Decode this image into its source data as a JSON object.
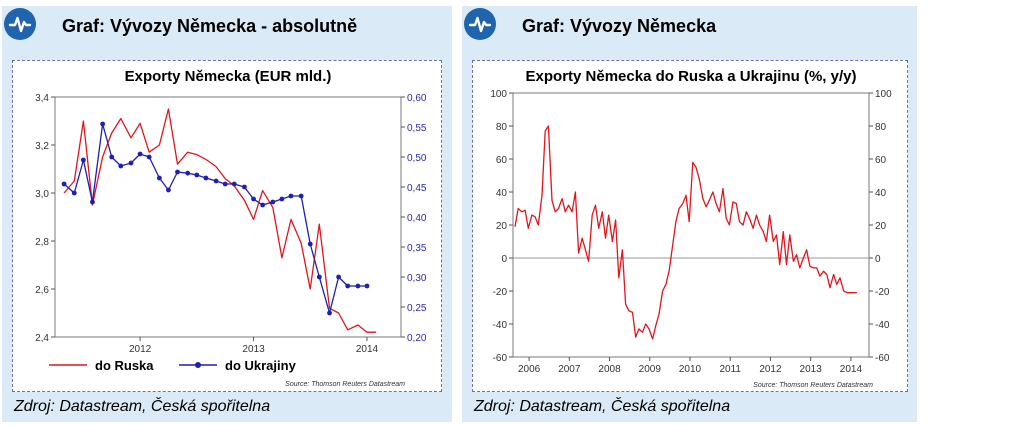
{
  "panels": {
    "left": {
      "title": "Graf:  Vývozy Německa - absolutně",
      "source": "Zdroj: Datastream, Česká spořitelna"
    },
    "right": {
      "title": "Graf:  Vývozy Německa",
      "source": "Zdroj: Datastream, Česká spořitelna"
    }
  },
  "colors": {
    "panel_bg": "#daeaf6",
    "icon": "#1f64ad",
    "russia": "#e2151c",
    "ukraine": "#1f1fb0",
    "axis_right": "#2b2bb0"
  },
  "icons": {
    "header": "pulse-chart-icon"
  },
  "chart_data": [
    {
      "type": "line",
      "title": "Exporty Německa (EUR mld.)",
      "x_ticks": [
        "2012",
        "2013",
        "2014"
      ],
      "x_range": [
        2011.25,
        2014.3
      ],
      "x_tick_values": [
        2012,
        2013,
        2014
      ],
      "y_left": {
        "range": [
          2.4,
          3.4
        ],
        "ticks": [
          "2,4",
          "2,6",
          "2,8",
          "3,0",
          "3,2",
          "3,4"
        ],
        "tick_values": [
          2.4,
          2.6,
          2.8,
          3.0,
          3.2,
          3.4
        ]
      },
      "y_right": {
        "range": [
          0.2,
          0.6
        ],
        "ticks": [
          "0,20",
          "0,25",
          "0,30",
          "0,35",
          "0,40",
          "0,45",
          "0,50",
          "0,55",
          "0,60"
        ],
        "tick_values": [
          0.2,
          0.25,
          0.3,
          0.35,
          0.4,
          0.45,
          0.5,
          0.55,
          0.6
        ]
      },
      "series": [
        {
          "name": "do Ruska",
          "axis": "left",
          "marker": "none",
          "x": [
            2011.33,
            2011.42,
            2011.5,
            2011.58,
            2011.67,
            2011.75,
            2011.83,
            2011.92,
            2012.0,
            2012.08,
            2012.17,
            2012.25,
            2012.33,
            2012.42,
            2012.5,
            2012.58,
            2012.67,
            2012.75,
            2012.83,
            2012.92,
            2013.0,
            2013.08,
            2013.17,
            2013.25,
            2013.33,
            2013.42,
            2013.5,
            2013.58,
            2013.67,
            2013.75,
            2013.83,
            2013.92,
            2014.0,
            2014.08
          ],
          "y": [
            3.0,
            3.05,
            3.3,
            2.95,
            3.15,
            3.25,
            3.31,
            3.23,
            3.29,
            3.17,
            3.2,
            3.35,
            3.12,
            3.17,
            3.16,
            3.14,
            3.11,
            3.06,
            3.03,
            2.97,
            2.89,
            3.01,
            2.94,
            2.73,
            2.89,
            2.79,
            2.6,
            2.87,
            2.52,
            2.5,
            2.43,
            2.45,
            2.42,
            2.42
          ]
        },
        {
          "name": "do Ukrajiny",
          "axis": "right",
          "marker": "circle",
          "x": [
            2011.33,
            2011.42,
            2011.5,
            2011.58,
            2011.67,
            2011.75,
            2011.83,
            2011.92,
            2012.0,
            2012.08,
            2012.17,
            2012.25,
            2012.33,
            2012.42,
            2012.5,
            2012.58,
            2012.67,
            2012.75,
            2012.83,
            2012.92,
            2013.0,
            2013.08,
            2013.17,
            2013.25,
            2013.33,
            2013.42,
            2013.5,
            2013.58,
            2013.67,
            2013.75,
            2013.83,
            2013.92,
            2014.0
          ],
          "y": [
            0.455,
            0.44,
            0.495,
            0.425,
            0.555,
            0.5,
            0.485,
            0.49,
            0.505,
            0.5,
            0.465,
            0.445,
            0.475,
            0.473,
            0.47,
            0.465,
            0.46,
            0.455,
            0.455,
            0.45,
            0.43,
            0.42,
            0.425,
            0.43,
            0.435,
            0.435,
            0.355,
            0.3,
            0.24,
            0.3,
            0.285,
            0.285,
            0.285
          ]
        }
      ],
      "legend": {
        "placement": "bottom"
      },
      "source_note": "Source: Thomson Reuters Datastream"
    },
    {
      "type": "line",
      "title": "Exporty Německa do Ruska a Ukrajinu  (%, y/y)",
      "x_ticks": [
        "2006",
        "2007",
        "2008",
        "2009",
        "2010",
        "2011",
        "2012",
        "2013",
        "2014"
      ],
      "x_range": [
        2005.6,
        2014.45
      ],
      "x_tick_values": [
        2006,
        2007,
        2008,
        2009,
        2010,
        2011,
        2012,
        2013,
        2014
      ],
      "y_left": {
        "range": [
          -60,
          100
        ],
        "ticks": [
          "-60",
          "-40",
          "-20",
          "0",
          "20",
          "40",
          "60",
          "80",
          "100"
        ],
        "tick_values": [
          -60,
          -40,
          -20,
          0,
          20,
          40,
          60,
          80,
          100
        ]
      },
      "y_right": {
        "range": [
          -60,
          100
        ],
        "ticks": [
          "-60",
          "-40",
          "-20",
          "0",
          "20",
          "40",
          "60",
          "80",
          "100"
        ],
        "tick_values": [
          -60,
          -40,
          -20,
          0,
          20,
          40,
          60,
          80,
          100
        ]
      },
      "zero_line": true,
      "series": [
        {
          "name": "",
          "axis": "left",
          "marker": "none",
          "x": [
            2005.65,
            2005.73,
            2005.82,
            2005.9,
            2005.98,
            2006.07,
            2006.15,
            2006.23,
            2006.32,
            2006.4,
            2006.48,
            2006.57,
            2006.65,
            2006.73,
            2006.82,
            2006.9,
            2006.98,
            2007.07,
            2007.15,
            2007.23,
            2007.32,
            2007.4,
            2007.48,
            2007.57,
            2007.65,
            2007.73,
            2007.82,
            2007.9,
            2007.98,
            2008.07,
            2008.15,
            2008.23,
            2008.32,
            2008.4,
            2008.48,
            2008.57,
            2008.65,
            2008.73,
            2008.82,
            2008.9,
            2008.98,
            2009.07,
            2009.15,
            2009.23,
            2009.32,
            2009.4,
            2009.48,
            2009.57,
            2009.65,
            2009.73,
            2009.82,
            2009.9,
            2009.98,
            2010.07,
            2010.15,
            2010.23,
            2010.32,
            2010.4,
            2010.48,
            2010.57,
            2010.65,
            2010.73,
            2010.82,
            2010.9,
            2010.98,
            2011.07,
            2011.15,
            2011.23,
            2011.32,
            2011.4,
            2011.48,
            2011.57,
            2011.65,
            2011.73,
            2011.82,
            2011.9,
            2011.98,
            2012.07,
            2012.15,
            2012.23,
            2012.32,
            2012.4,
            2012.48,
            2012.57,
            2012.65,
            2012.73,
            2012.82,
            2012.9,
            2012.98,
            2013.07,
            2013.15,
            2013.23,
            2013.32,
            2013.4,
            2013.48,
            2013.57,
            2013.65,
            2013.73,
            2013.82,
            2013.9,
            2013.98,
            2014.07,
            2014.15
          ],
          "y": [
            19,
            30,
            28,
            29,
            18,
            26,
            25,
            20,
            38,
            77,
            80,
            35,
            28,
            30,
            36,
            28,
            32,
            28,
            40,
            3,
            12,
            5,
            -2,
            26,
            32,
            18,
            28,
            12,
            26,
            10,
            23,
            -12,
            5,
            -28,
            -32,
            -33,
            -48,
            -43,
            -45,
            -40,
            -43,
            -49,
            -41,
            -34,
            -20,
            -16,
            -8,
            8,
            22,
            30,
            33,
            38,
            22,
            58,
            55,
            48,
            36,
            31,
            35,
            40,
            33,
            28,
            42,
            24,
            20,
            34,
            33,
            22,
            20,
            28,
            24,
            18,
            26,
            20,
            16,
            10,
            26,
            10,
            14,
            -4,
            16,
            -4,
            14,
            -2,
            2,
            -6,
            0,
            5,
            -5,
            -6,
            -6,
            -11,
            -8,
            -10,
            -18,
            -10,
            -16,
            -12,
            -20,
            -21,
            -21,
            -21,
            -21
          ]
        }
      ],
      "source_note": "Source: Thomson Reuters Datastream"
    }
  ]
}
